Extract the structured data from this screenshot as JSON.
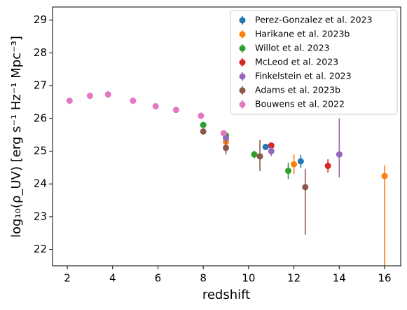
{
  "chart_data": {
    "type": "scatter",
    "x_label": "redshift",
    "y_label": "log₁₀(ρ_UV) [erg s⁻¹ Hz⁻¹ Mpc⁻³]",
    "xlim": [
      1.35,
      16.71
    ],
    "ylim": [
      21.5,
      29.4
    ],
    "xticks": [
      2,
      4,
      6,
      8,
      10,
      12,
      14,
      16
    ],
    "yticks": [
      22,
      23,
      24,
      25,
      26,
      27,
      28,
      29
    ],
    "legend": "upper right",
    "series": [
      {
        "name": "Perez-Gonzalez et al. 2023",
        "color": "#1f77b4",
        "x": [
          10.75,
          12.3
        ],
        "values": [
          25.13,
          24.69
        ],
        "errors": [
          [
            0.08,
            0.08
          ],
          [
            0.2,
            0.2
          ]
        ]
      },
      {
        "name": "Harikane et al. 2023b",
        "color": "#ff7f0e",
        "x": [
          9,
          12,
          16
        ],
        "values": [
          25.29,
          24.6,
          24.24
        ],
        "errors": [
          [
            0.1,
            0.1
          ],
          [
            0.3,
            0.3
          ],
          [
            3,
            0.33
          ]
        ]
      },
      {
        "name": "Willot et al. 2023",
        "color": "#2ca02c",
        "x": [
          8,
          9,
          10.25,
          11.75
        ],
        "values": [
          25.8,
          25.48,
          24.9,
          24.4
        ],
        "errors": [
          [
            0.05,
            0.05
          ],
          [
            0.05,
            0.05
          ],
          [
            0.12,
            0.12
          ],
          [
            0.25,
            0.25
          ]
        ]
      },
      {
        "name": "McLeod et al. 2023",
        "color": "#d62728",
        "x": [
          11,
          13.5
        ],
        "values": [
          25.17,
          24.55
        ],
        "errors": [
          [
            0.1,
            0.1
          ],
          [
            0.2,
            0.2
          ]
        ]
      },
      {
        "name": "Finkelstein et al. 2023",
        "color": "#9467bd",
        "x": [
          9,
          11,
          14
        ],
        "values": [
          25.4,
          25.0,
          24.9
        ],
        "errors": [
          [
            0.1,
            0.1
          ],
          [
            0.15,
            0.15
          ],
          [
            0.7,
            1.1
          ]
        ]
      },
      {
        "name": "Adams et al. 2023b",
        "color": "#8c564b",
        "x": [
          8,
          9,
          10.5,
          12.5
        ],
        "values": [
          25.6,
          25.1,
          24.84,
          23.9
        ],
        "errors": [
          [
            0.05,
            0.05
          ],
          [
            0.2,
            0.2
          ],
          [
            0.45,
            0.5
          ],
          [
            1.45,
            0.55
          ]
        ]
      },
      {
        "name": "Bouwens et al. 2022",
        "color": "#e377c2",
        "x": [
          2.1,
          3,
          3.8,
          4.9,
          5.9,
          6.8,
          7.9,
          8.9
        ],
        "values": [
          26.54,
          26.69,
          26.73,
          26.54,
          26.37,
          26.26,
          26.08,
          25.55
        ],
        "errors": [
          [
            0.05,
            0.05
          ],
          [
            0.05,
            0.05
          ],
          [
            0.1,
            0.1
          ],
          [
            0.05,
            0.05
          ],
          [
            0.05,
            0.05
          ],
          [
            0.05,
            0.05
          ],
          [
            0.1,
            0.1
          ],
          [
            0.05,
            0.05
          ]
        ]
      }
    ]
  }
}
